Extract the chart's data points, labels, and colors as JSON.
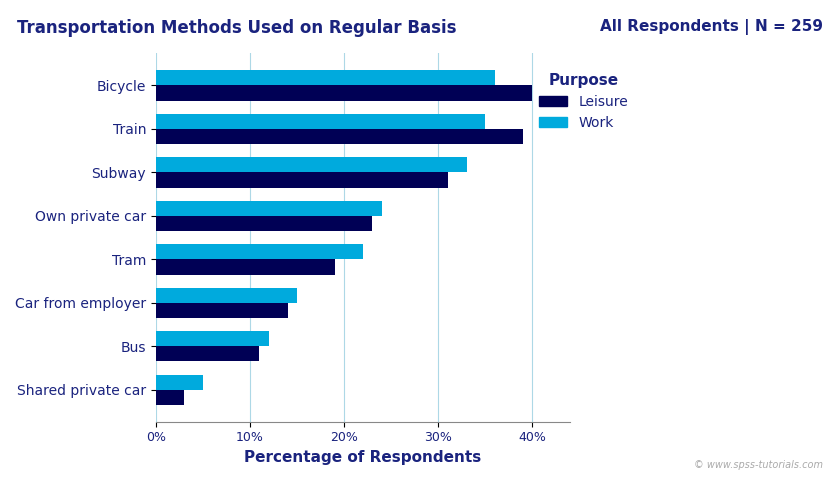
{
  "title": "Transportation Methods Used on Regular Basis",
  "subtitle": "All Respondents | N = 259",
  "xlabel": "Percentage of Respondents",
  "categories": [
    "Bicycle",
    "Train",
    "Subway",
    "Own private car",
    "Tram",
    "Car from employer",
    "Bus",
    "Shared private car"
  ],
  "work_values": [
    36,
    35,
    33,
    24,
    22,
    15,
    12,
    5
  ],
  "leisure_values": [
    40,
    39,
    31,
    23,
    19,
    14,
    11,
    3
  ],
  "work_color": "#00AADD",
  "leisure_color": "#000055",
  "background_color": "#FFFFFF",
  "title_color": "#1a237e",
  "subtitle_color": "#1a237e",
  "label_color": "#1a237e",
  "legend_title": "Purpose",
  "legend_labels": [
    "Leisure",
    "Work"
  ],
  "xticks": [
    0,
    10,
    20,
    30,
    40
  ],
  "xlim": [
    0,
    44
  ],
  "watermark": "© www.spss-tutorials.com",
  "title_fontsize": 12,
  "subtitle_fontsize": 11,
  "label_fontsize": 10,
  "tick_fontsize": 9
}
